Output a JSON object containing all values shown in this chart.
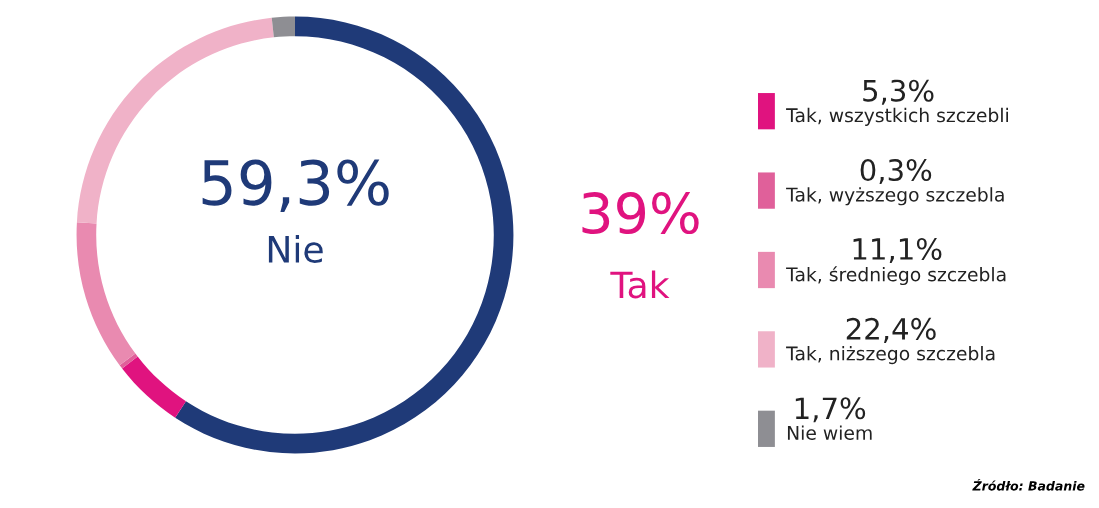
{
  "chart_data": {
    "type": "donut",
    "categories": [
      "Nie",
      "Tak, wszystkich szczebli",
      "Tak, wyższego szczebla",
      "Tak, średniego szczebla",
      "Tak, niższego szczebla",
      "Nie wiem"
    ],
    "values": [
      59.3,
      5.3,
      0.3,
      11.1,
      22.4,
      1.7
    ],
    "colors": [
      "#1f3a78",
      "#e0137f",
      "#e0609a",
      "#e98ab0",
      "#f0b2c8",
      "#8e8e93"
    ],
    "value_labels": [
      "59,3%",
      "5,3%",
      "0,3%",
      "11,1%",
      "22,4%",
      "1,7%"
    ],
    "legend": "right",
    "annotations": [
      "39%",
      "Tak",
      "Źródło: Badanie"
    ]
  }
}
